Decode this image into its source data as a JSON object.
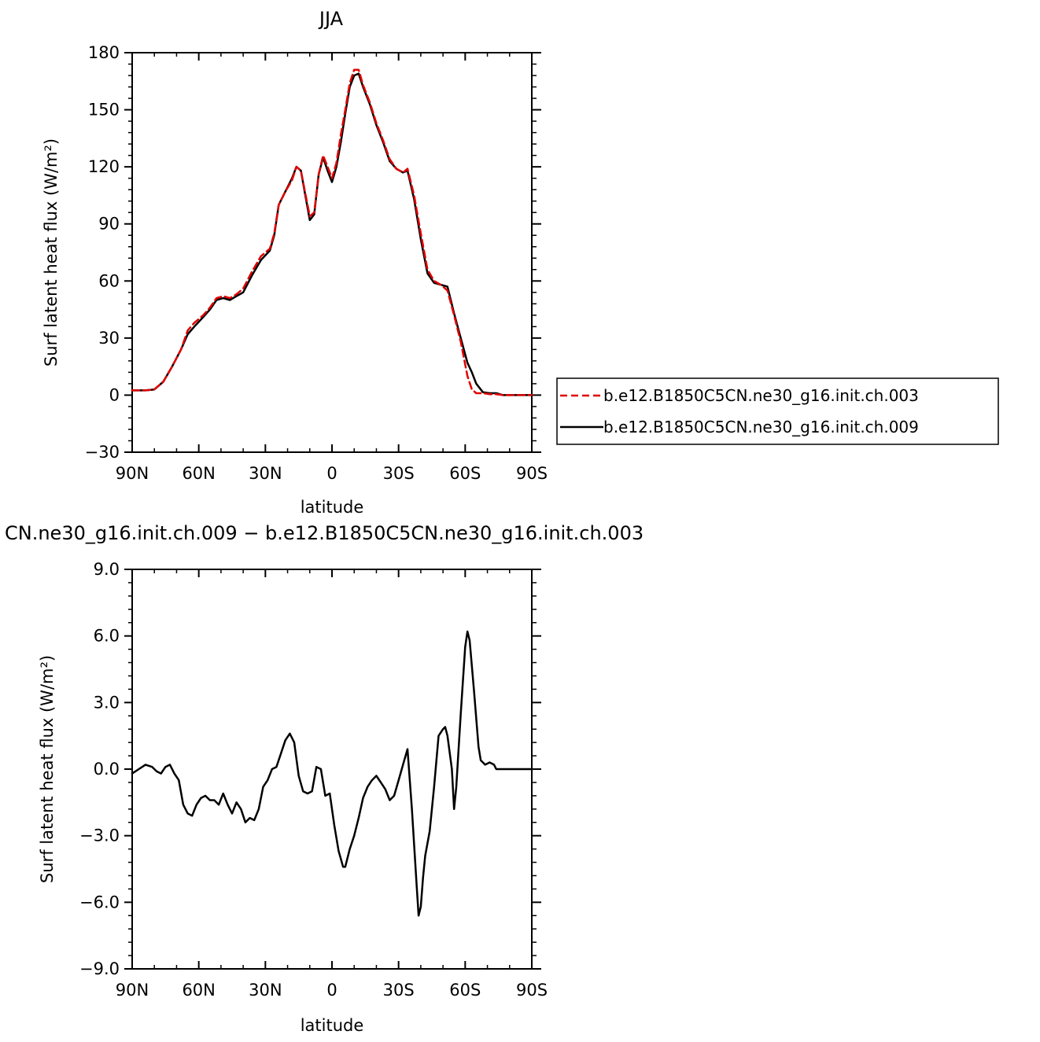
{
  "chart_data": [
    {
      "type": "line",
      "title": "JJA",
      "xlabel": "latitude",
      "ylabel": "Surf latent heat flux (W/m²)",
      "xlim": [
        90,
        -90
      ],
      "ylim": [
        -30,
        180
      ],
      "x_tick_values": [
        90,
        60,
        30,
        0,
        -30,
        -60,
        -90
      ],
      "x_tick_labels": [
        "90N",
        "60N",
        "30N",
        "0",
        "30S",
        "60S",
        "90S"
      ],
      "y_ticks": [
        -30,
        0,
        30,
        60,
        90,
        120,
        150,
        180
      ],
      "y_tick_labels": [
        "−30",
        "0",
        "30",
        "60",
        "90",
        "120",
        "150",
        "180"
      ],
      "legend_position": "right",
      "series": [
        {
          "name": "b.e12.B1850C5CN.ne30_g16.init.ch.003",
          "color": "#e00000",
          "style": "dashed",
          "points": [
            [
              90,
              2.5
            ],
            [
              84,
              2.5
            ],
            [
              80,
              3
            ],
            [
              76,
              7
            ],
            [
              72,
              15
            ],
            [
              68,
              24
            ],
            [
              65,
              34
            ],
            [
              62,
              38
            ],
            [
              58,
              42
            ],
            [
              55,
              46
            ],
            [
              52,
              51
            ],
            [
              49,
              52
            ],
            [
              46,
              51
            ],
            [
              43,
              53
            ],
            [
              40,
              56
            ],
            [
              36,
              65
            ],
            [
              32,
              73
            ],
            [
              28,
              77
            ],
            [
              26,
              85
            ],
            [
              24,
              100
            ],
            [
              21,
              107
            ],
            [
              18,
              113
            ],
            [
              16,
              120
            ],
            [
              14,
              118
            ],
            [
              12,
              106
            ],
            [
              10,
              94
            ],
            [
              8,
              96
            ],
            [
              6,
              116
            ],
            [
              4,
              126
            ],
            [
              2,
              120
            ],
            [
              0,
              114
            ],
            [
              -2,
              122
            ],
            [
              -4,
              137
            ],
            [
              -6,
              150
            ],
            [
              -8,
              164
            ],
            [
              -10,
              171
            ],
            [
              -12,
              171
            ],
            [
              -14,
              163
            ],
            [
              -17,
              154
            ],
            [
              -20,
              143
            ],
            [
              -23,
              134
            ],
            [
              -26,
              124
            ],
            [
              -29,
              119
            ],
            [
              -32,
              117
            ],
            [
              -34,
              119
            ],
            [
              -37,
              105
            ],
            [
              -40,
              85
            ],
            [
              -43,
              66
            ],
            [
              -46,
              60
            ],
            [
              -49,
              58
            ],
            [
              -52,
              55
            ],
            [
              -55,
              42
            ],
            [
              -58,
              28
            ],
            [
              -61,
              10
            ],
            [
              -63,
              3
            ],
            [
              -65,
              1
            ],
            [
              -68,
              1
            ],
            [
              -71,
              0.5
            ],
            [
              -74,
              0.5
            ],
            [
              -77,
              0
            ],
            [
              -80,
              0
            ],
            [
              -84,
              0
            ],
            [
              -90,
              0
            ]
          ]
        },
        {
          "name": "b.e12.B1850C5CN.ne30_g16.init.ch.009",
          "color": "#000000",
          "style": "solid",
          "points": [
            [
              90,
              2.5
            ],
            [
              84,
              2.5
            ],
            [
              80,
              3
            ],
            [
              76,
              7
            ],
            [
              72,
              15
            ],
            [
              68,
              24
            ],
            [
              65,
              32
            ],
            [
              62,
              36
            ],
            [
              58,
              41
            ],
            [
              55,
              45
            ],
            [
              52,
              50
            ],
            [
              49,
              51
            ],
            [
              46,
              50
            ],
            [
              43,
              52
            ],
            [
              40,
              54
            ],
            [
              36,
              63
            ],
            [
              32,
              71
            ],
            [
              28,
              76
            ],
            [
              26,
              84
            ],
            [
              24,
              100
            ],
            [
              21,
              107
            ],
            [
              18,
              114
            ],
            [
              16,
              120
            ],
            [
              14,
              118
            ],
            [
              12,
              105
            ],
            [
              10,
              92
            ],
            [
              8,
              95
            ],
            [
              6,
              116
            ],
            [
              4,
              125
            ],
            [
              2,
              118
            ],
            [
              0,
              112
            ],
            [
              -2,
              120
            ],
            [
              -4,
              133
            ],
            [
              -6,
              148
            ],
            [
              -8,
              162
            ],
            [
              -10,
              168
            ],
            [
              -12,
              169
            ],
            [
              -14,
              162
            ],
            [
              -17,
              153
            ],
            [
              -20,
              142
            ],
            [
              -23,
              133
            ],
            [
              -26,
              123
            ],
            [
              -29,
              119
            ],
            [
              -32,
              117
            ],
            [
              -34,
              118
            ],
            [
              -37,
              103
            ],
            [
              -40,
              82
            ],
            [
              -43,
              64
            ],
            [
              -46,
              59
            ],
            [
              -49,
              58
            ],
            [
              -52,
              57
            ],
            [
              -55,
              43
            ],
            [
              -58,
              30
            ],
            [
              -61,
              17
            ],
            [
              -63,
              12
            ],
            [
              -65,
              6
            ],
            [
              -68,
              1.5
            ],
            [
              -71,
              1
            ],
            [
              -74,
              1
            ],
            [
              -77,
              0
            ],
            [
              -80,
              0
            ],
            [
              -84,
              0
            ],
            [
              -90,
              0
            ]
          ]
        }
      ]
    },
    {
      "type": "line",
      "title": "CN.ne30_g16.init.ch.009  −  b.e12.B1850C5CN.ne30_g16.init.ch.003",
      "xlabel": "latitude",
      "ylabel": "Surf latent heat flux (W/m²)",
      "xlim": [
        90,
        -90
      ],
      "ylim": [
        -9,
        9
      ],
      "x_tick_values": [
        90,
        60,
        30,
        0,
        -30,
        -60,
        -90
      ],
      "x_tick_labels": [
        "90N",
        "60N",
        "30N",
        "0",
        "30S",
        "60S",
        "90S"
      ],
      "y_ticks": [
        -9,
        -6,
        -3,
        0,
        3,
        6,
        9
      ],
      "y_tick_labels": [
        "−9.0",
        "−6.0",
        "−3.0",
        "0.0",
        "3.0",
        "6.0",
        "9.0"
      ],
      "series": [
        {
          "color": "#000000",
          "style": "solid",
          "points": [
            [
              90,
              -0.2
            ],
            [
              87,
              0
            ],
            [
              84,
              0.2
            ],
            [
              81,
              0.1
            ],
            [
              79,
              -0.1
            ],
            [
              77,
              -0.2
            ],
            [
              75,
              0.1
            ],
            [
              73,
              0.2
            ],
            [
              71,
              -0.2
            ],
            [
              69,
              -0.5
            ],
            [
              67,
              -1.6
            ],
            [
              65,
              -2.0
            ],
            [
              63,
              -2.1
            ],
            [
              61,
              -1.6
            ],
            [
              59,
              -1.3
            ],
            [
              57,
              -1.2
            ],
            [
              55,
              -1.4
            ],
            [
              53,
              -1.4
            ],
            [
              51,
              -1.6
            ],
            [
              49,
              -1.1
            ],
            [
              47,
              -1.6
            ],
            [
              45,
              -2.0
            ],
            [
              43,
              -1.5
            ],
            [
              41,
              -1.8
            ],
            [
              39,
              -2.4
            ],
            [
              37,
              -2.2
            ],
            [
              35,
              -2.3
            ],
            [
              33,
              -1.8
            ],
            [
              31,
              -0.8
            ],
            [
              29,
              -0.5
            ],
            [
              27,
              0
            ],
            [
              25,
              0.1
            ],
            [
              23,
              0.7
            ],
            [
              21,
              1.3
            ],
            [
              19,
              1.6
            ],
            [
              17,
              1.2
            ],
            [
              15,
              -0.3
            ],
            [
              13,
              -1.0
            ],
            [
              11,
              -1.1
            ],
            [
              9,
              -1.0
            ],
            [
              7,
              0.1
            ],
            [
              5,
              0
            ],
            [
              3,
              -1.2
            ],
            [
              1,
              -1.1
            ],
            [
              -1,
              -2.5
            ],
            [
              -3,
              -3.7
            ],
            [
              -5,
              -4.4
            ],
            [
              -6,
              -4.4
            ],
            [
              -8,
              -3.6
            ],
            [
              -10,
              -3.0
            ],
            [
              -12,
              -2.2
            ],
            [
              -14,
              -1.3
            ],
            [
              -16,
              -0.8
            ],
            [
              -18,
              -0.5
            ],
            [
              -20,
              -0.3
            ],
            [
              -22,
              -0.6
            ],
            [
              -24,
              -0.9
            ],
            [
              -26,
              -1.4
            ],
            [
              -28,
              -1.2
            ],
            [
              -30,
              -0.5
            ],
            [
              -32,
              0.2
            ],
            [
              -34,
              0.9
            ],
            [
              -36,
              -1.8
            ],
            [
              -38,
              -5.0
            ],
            [
              -39,
              -6.6
            ],
            [
              -40,
              -6.2
            ],
            [
              -41,
              -4.9
            ],
            [
              -42,
              -3.9
            ],
            [
              -44,
              -2.8
            ],
            [
              -46,
              -0.8
            ],
            [
              -48,
              1.5
            ],
            [
              -50,
              1.8
            ],
            [
              -51,
              1.9
            ],
            [
              -52,
              1.5
            ],
            [
              -54,
              0
            ],
            [
              -55,
              -1.8
            ],
            [
              -56,
              -0.8
            ],
            [
              -58,
              2.5
            ],
            [
              -60,
              5.5
            ],
            [
              -61,
              6.2
            ],
            [
              -62,
              5.8
            ],
            [
              -64,
              3.5
            ],
            [
              -66,
              1.0
            ],
            [
              -67,
              0.4
            ],
            [
              -69,
              0.2
            ],
            [
              -71,
              0.3
            ],
            [
              -73,
              0.2
            ],
            [
              -74,
              0
            ],
            [
              -77,
              0
            ],
            [
              -81,
              0
            ],
            [
              -85,
              0
            ],
            [
              -90,
              0
            ]
          ]
        }
      ]
    }
  ]
}
